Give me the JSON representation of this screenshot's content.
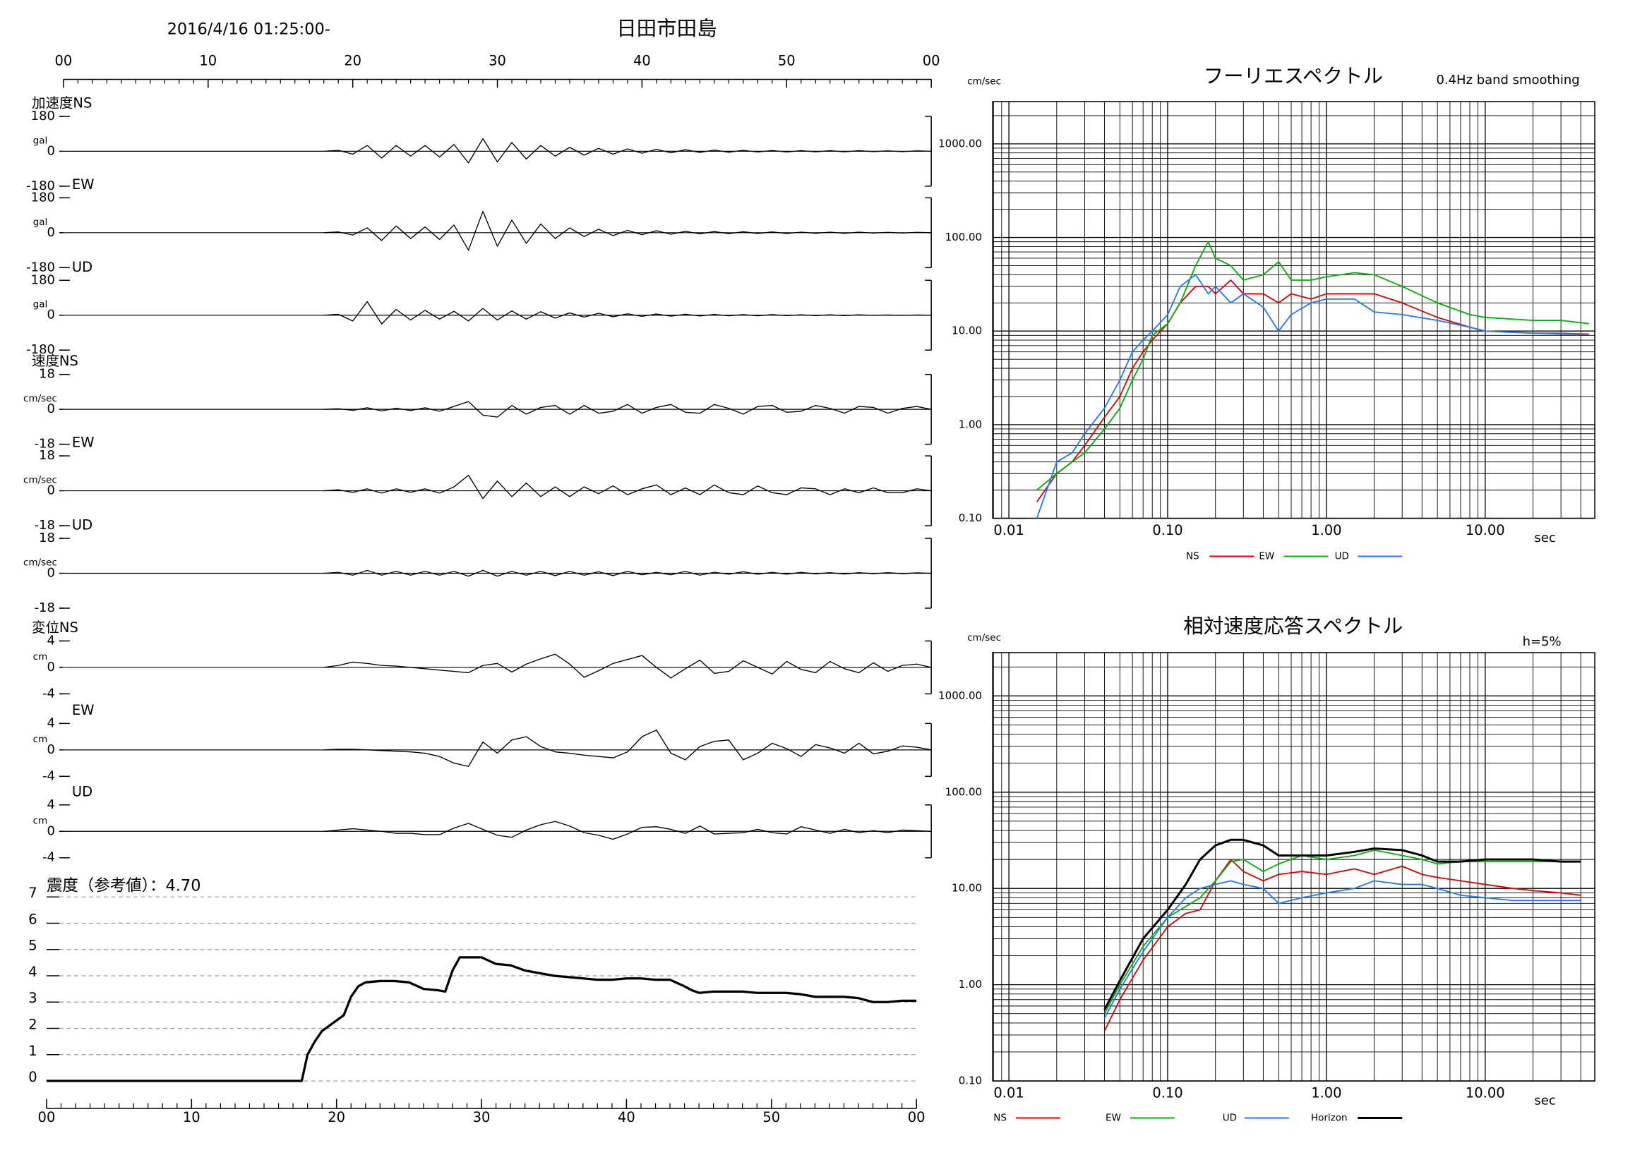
{
  "chart_data": [
    {
      "type": "waveform",
      "title": "日田市田島",
      "subtitle": "2016/4/16 01:25:00-",
      "xlim": [
        0,
        60
      ],
      "xticks": [
        {
          "value": 0,
          "label": "00"
        },
        10,
        20,
        30,
        40,
        50,
        {
          "value": 60,
          "label": "00"
        }
      ],
      "x": [
        18,
        19,
        20,
        21,
        22,
        23,
        24,
        25,
        26,
        27,
        28,
        29,
        30,
        31,
        32,
        33,
        34,
        35,
        36,
        37,
        38,
        39,
        40,
        41,
        42,
        43,
        44,
        45,
        46,
        47,
        48,
        49,
        50,
        51,
        52,
        53,
        54,
        55,
        56,
        57,
        58,
        59,
        60
      ],
      "color": "#000000",
      "panels": [
        {
          "label": "加速度NS",
          "unit": "gal",
          "ylim": [
            -180,
            180
          ],
          "yticks": [
            180,
            0,
            -180
          ],
          "values": [
            0,
            5,
            -15,
            30,
            -35,
            30,
            -25,
            30,
            -30,
            35,
            -60,
            65,
            -55,
            45,
            -40,
            30,
            -25,
            20,
            -20,
            15,
            -15,
            12,
            -10,
            10,
            -8,
            8,
            -6,
            6,
            -5,
            5,
            -4,
            4,
            -4,
            3,
            -3,
            3,
            -3,
            3,
            -2,
            2,
            -2,
            2,
            0
          ]
        },
        {
          "label": "EW",
          "unit": "gal",
          "ylim": [
            -180,
            180
          ],
          "yticks": [
            180,
            0,
            -180
          ],
          "values": [
            0,
            4,
            -12,
            25,
            -40,
            35,
            -30,
            30,
            -35,
            40,
            -90,
            110,
            -70,
            65,
            -55,
            45,
            -30,
            25,
            -20,
            18,
            -15,
            12,
            -10,
            10,
            -8,
            7,
            -6,
            6,
            -5,
            5,
            -4,
            4,
            -4,
            3,
            -3,
            3,
            -3,
            3,
            -2,
            2,
            -2,
            2,
            0
          ]
        },
        {
          "label": "UD",
          "unit": "gal",
          "ylim": [
            -180,
            180
          ],
          "yticks": [
            180,
            0,
            -180
          ],
          "values": [
            0,
            5,
            -30,
            70,
            -45,
            30,
            -25,
            25,
            -20,
            20,
            -30,
            35,
            -25,
            22,
            -20,
            18,
            -15,
            12,
            -10,
            10,
            -8,
            7,
            -6,
            6,
            -5,
            5,
            -4,
            4,
            -3,
            3,
            -3,
            3,
            -2,
            2,
            -2,
            2,
            -2,
            2,
            -1,
            1,
            -1,
            1,
            0
          ]
        },
        {
          "label": "速度NS",
          "unit": "cm/sec",
          "ylim": [
            -18,
            18
          ],
          "yticks": [
            18,
            0,
            -18
          ],
          "values": [
            0,
            0.3,
            -0.5,
            0.8,
            -0.8,
            0.6,
            -0.6,
            0.8,
            -1,
            1.5,
            4,
            -3,
            -4,
            2,
            -2.5,
            1,
            2,
            -2.5,
            2,
            -2,
            -1,
            2.5,
            -2,
            1,
            2.5,
            -1.5,
            -2,
            2.5,
            0.5,
            -2.5,
            1.5,
            2,
            -1.5,
            -1,
            2,
            0.5,
            -2,
            1.5,
            1,
            -2,
            0.5,
            1.5,
            0
          ]
        },
        {
          "label": "EW",
          "unit": "cm/sec",
          "ylim": [
            -18,
            18
          ],
          "yticks": [
            18,
            0,
            -18
          ],
          "values": [
            0,
            0.5,
            -0.8,
            1,
            -1.2,
            1,
            -0.8,
            1,
            -1.2,
            2,
            8,
            -4,
            5,
            -3,
            4,
            -3,
            2,
            -3,
            2,
            -1.5,
            2.5,
            -2,
            1,
            3,
            -2,
            1.5,
            -2,
            3,
            -1,
            -2,
            2.5,
            -1,
            -2,
            1.5,
            1,
            -2,
            1,
            -1,
            1.5,
            -1,
            -1,
            1,
            0
          ]
        },
        {
          "label": "UD",
          "unit": "cm/sec",
          "ylim": [
            -18,
            18
          ],
          "yticks": [
            18,
            0,
            -18
          ],
          "values": [
            0,
            0.5,
            -1,
            1.5,
            -1,
            1,
            -1,
            1,
            -1,
            1,
            -1.5,
            1.5,
            -1.5,
            1,
            -1,
            1,
            -1.2,
            1,
            -1,
            0.8,
            -1.2,
            1,
            -0.8,
            0.5,
            -0.8,
            1,
            -1,
            0.5,
            -0.5,
            0.8,
            -0.5,
            0.5,
            -0.5,
            0.5,
            -0.3,
            0.3,
            -0.4,
            0.3,
            -0.2,
            0.3,
            -0.2,
            0.2,
            0
          ]
        },
        {
          "label": "変位NS",
          "unit": "cm",
          "ylim": [
            -4,
            4
          ],
          "yticks": [
            4,
            0,
            -4
          ],
          "values": [
            0,
            0.3,
            0.8,
            0.6,
            0.3,
            0.2,
            0,
            -0.2,
            -0.4,
            -0.6,
            -0.8,
            0.3,
            0.6,
            -0.7,
            0.5,
            1.3,
            2.0,
            0.5,
            -1.5,
            -0.5,
            0.6,
            1.2,
            1.8,
            0,
            -1.6,
            -0.2,
            1.1,
            -0.9,
            -0.6,
            1.0,
            0,
            -1.0,
            0.9,
            -0.3,
            -0.8,
            0.9,
            -0.2,
            -0.8,
            0.7,
            -0.6,
            0.3,
            0.5,
            0
          ]
        },
        {
          "label": "EW",
          "unit": "cm",
          "ylim": [
            -4,
            4
          ],
          "yticks": [
            4,
            0,
            -4
          ],
          "values": [
            0,
            0.1,
            0.1,
            0,
            -0.1,
            -0.2,
            -0.3,
            -0.5,
            -1,
            -2,
            -2.5,
            1.2,
            -0.5,
            1.5,
            2,
            0.5,
            -0.3,
            -0.5,
            -0.8,
            -1,
            -1.2,
            -0.3,
            2,
            3,
            -0.5,
            -1.5,
            0.5,
            1.3,
            1.5,
            -1.5,
            -0.5,
            1,
            0.2,
            -1,
            0.8,
            0.3,
            -0.5,
            1,
            -0.6,
            -0.2,
            0.6,
            0.4,
            0
          ]
        },
        {
          "label": "UD",
          "unit": "cm",
          "ylim": [
            -4,
            4
          ],
          "yticks": [
            4,
            0,
            -4
          ],
          "values": [
            0,
            0.2,
            0.4,
            0.2,
            0,
            -0.3,
            -0.3,
            -0.5,
            -0.5,
            0.5,
            1.2,
            0.3,
            -0.6,
            -0.9,
            0.2,
            1.0,
            1.5,
            0.8,
            -0.2,
            -0.6,
            -1.2,
            -0.4,
            0.6,
            0.7,
            0.3,
            -0.3,
            0.8,
            -0.4,
            -0.3,
            -0.2,
            0.3,
            -0.2,
            -0.4,
            0.7,
            0.2,
            -0.3,
            0.3,
            -0.2,
            0.1,
            -0.2,
            0.2,
            0.1,
            0
          ]
        }
      ]
    },
    {
      "type": "line",
      "title": "震度（参考値）：4.70",
      "color": "#000000",
      "grid": true,
      "xlim": [
        0,
        60
      ],
      "xticks": [
        {
          "value": 0,
          "label": "00"
        },
        10,
        20,
        30,
        40,
        50,
        {
          "value": 60,
          "label": "00"
        }
      ],
      "ylim": [
        0,
        7
      ],
      "yticks": [
        0,
        1,
        2,
        3,
        4,
        5,
        6,
        7
      ],
      "x": [
        0,
        17.6,
        18,
        18.5,
        19,
        19.5,
        20,
        20.5,
        21,
        21.5,
        22,
        23,
        24,
        25,
        26,
        27,
        27.5,
        28,
        28.5,
        29,
        30,
        31,
        32,
        33,
        34,
        35,
        36,
        37,
        38,
        39,
        40,
        41,
        42,
        43,
        44,
        44.5,
        45,
        46,
        47,
        48,
        49,
        50,
        51,
        52,
        53,
        54,
        55,
        56,
        57,
        58,
        59,
        60
      ],
      "values": [
        0,
        0,
        1,
        1.5,
        1.9,
        2.1,
        2.3,
        2.5,
        3.2,
        3.6,
        3.75,
        3.8,
        3.8,
        3.75,
        3.5,
        3.45,
        3.4,
        4.2,
        4.7,
        4.7,
        4.7,
        4.45,
        4.4,
        4.2,
        4.1,
        4.0,
        3.95,
        3.9,
        3.85,
        3.85,
        3.9,
        3.9,
        3.85,
        3.85,
        3.6,
        3.45,
        3.35,
        3.4,
        3.4,
        3.4,
        3.35,
        3.35,
        3.35,
        3.3,
        3.2,
        3.2,
        3.2,
        3.15,
        3.0,
        3.0,
        3.05,
        3.05
      ]
    },
    {
      "type": "spectrum",
      "title": "フーリエスペクトル",
      "subtitle": "0.4Hz band smoothing",
      "y_label": "cm/sec",
      "x_label": "sec",
      "log_x": true,
      "log_y": true,
      "grid": true,
      "xlim": [
        0.0079,
        49
      ],
      "ylim": [
        0.1,
        2830
      ],
      "xticks": [
        0.01,
        {
          "value": 0.1,
          "label": "0.10"
        },
        {
          "value": 1,
          "label": "1.00"
        },
        {
          "value": 10,
          "label": "10.00"
        }
      ],
      "yticks": [
        {
          "value": 0.1,
          "label": "0.10"
        },
        {
          "value": 1,
          "label": "1.00"
        },
        {
          "value": 10,
          "label": "10.00"
        },
        {
          "value": 100,
          "label": "100.00"
        },
        {
          "value": 1000,
          "label": "1000.00"
        }
      ],
      "x": [
        0.015,
        0.02,
        0.025,
        0.03,
        0.04,
        0.05,
        0.06,
        0.07,
        0.08,
        0.1,
        0.12,
        0.15,
        0.18,
        0.2,
        0.25,
        0.3,
        0.4,
        0.5,
        0.6,
        0.8,
        1,
        1.5,
        2,
        3,
        5,
        8,
        10,
        20,
        30,
        45
      ],
      "series": [
        {
          "name": "NS",
          "color": "#e00000",
          "values": [
            0.15,
            0.3,
            0.4,
            0.6,
            1.2,
            2,
            4,
            6,
            8,
            12,
            20,
            30,
            30,
            25,
            35,
            25,
            25,
            20,
            25,
            22,
            25,
            25,
            25,
            20,
            14,
            11,
            10,
            9.5,
            9.3,
            9.2
          ]
        },
        {
          "name": "EW",
          "color": "#00b000",
          "values": [
            0.2,
            0.3,
            0.4,
            0.5,
            0.9,
            1.5,
            3,
            5,
            9,
            12,
            20,
            50,
            90,
            60,
            50,
            35,
            40,
            55,
            35,
            35,
            38,
            42,
            40,
            30,
            20,
            15,
            14,
            13,
            13,
            12
          ]
        },
        {
          "name": "UD",
          "color": "#1e78ff",
          "values": [
            0.1,
            0.4,
            0.5,
            0.8,
            1.5,
            3,
            6,
            8,
            10,
            15,
            30,
            40,
            25,
            30,
            20,
            25,
            18,
            10,
            15,
            20,
            22,
            22,
            16,
            15,
            13,
            11,
            10,
            9.5,
            9.5,
            9.3
          ]
        }
      ]
    },
    {
      "type": "spectrum",
      "title": "相対速度応答スペクトル",
      "annotation": "h=5%",
      "y_label": "cm/sec",
      "x_label": "sec",
      "log_x": true,
      "log_y": true,
      "grid": true,
      "xlim": [
        0.0079,
        49
      ],
      "ylim": [
        0.1,
        2820
      ],
      "xticks": [
        0.01,
        {
          "value": 0.1,
          "label": "0.10"
        },
        {
          "value": 1,
          "label": "1.00"
        },
        {
          "value": 10,
          "label": "10.00"
        }
      ],
      "yticks": [
        {
          "value": 0.1,
          "label": "0.10"
        },
        {
          "value": 1,
          "label": "1.00"
        },
        {
          "value": 10,
          "label": "10.00"
        },
        {
          "value": 100,
          "label": "100.00"
        },
        {
          "value": 1000,
          "label": "1000.00"
        }
      ],
      "x": [
        0.04,
        0.05,
        0.07,
        0.1,
        0.13,
        0.16,
        0.2,
        0.25,
        0.3,
        0.4,
        0.5,
        0.7,
        1,
        1.5,
        2,
        3,
        4,
        5,
        7,
        10,
        15,
        20,
        30,
        40
      ],
      "series": [
        {
          "name": "NS",
          "color": "#e00000",
          "values": [
            0.33,
            0.7,
            1.8,
            4,
            5.5,
            6,
            12,
            20,
            15,
            12,
            14,
            15,
            14,
            16,
            14,
            17,
            14,
            13,
            12,
            11,
            10,
            9.5,
            9,
            8.5
          ]
        },
        {
          "name": "EW",
          "color": "#00b000",
          "values": [
            0.5,
            1,
            2.5,
            5,
            6.5,
            8,
            12,
            19,
            20,
            15,
            18,
            22,
            20,
            22,
            25,
            22,
            20,
            18,
            19,
            19,
            19,
            19,
            19,
            19
          ]
        },
        {
          "name": "UD",
          "color": "#1e78ff",
          "values": [
            0.45,
            0.9,
            2.2,
            5,
            8,
            10,
            11,
            12,
            11,
            10,
            7,
            8,
            9,
            10,
            12,
            11,
            11,
            10,
            8.5,
            8,
            7.5,
            7.5,
            7.5,
            7.5
          ]
        },
        {
          "name": "Horizon",
          "color": "#000000",
          "values": [
            0.55,
            1.1,
            3,
            6,
            11,
            20,
            28,
            32,
            32,
            28,
            22,
            22,
            22,
            24,
            26,
            25,
            22,
            19,
            19,
            20,
            20,
            20,
            19,
            19
          ]
        }
      ]
    }
  ]
}
